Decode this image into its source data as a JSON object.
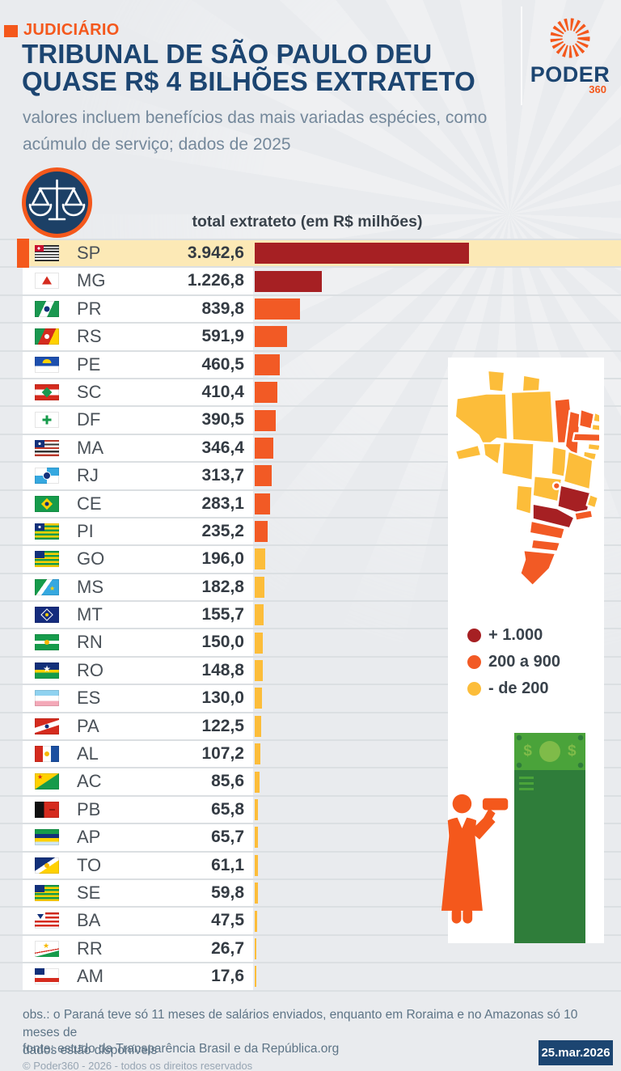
{
  "header": {
    "kicker": "JUDICIÁRIO",
    "title_line1": "TRIBUNAL DE SÃO PAULO DEU",
    "title_line2": "QUASE R$ 4 BILHÕES EXTRATETO",
    "subtitle": "valores incluem benefícios das mais variadas espécies, como acúmulo de serviço; dados de 2025",
    "logo_name": "PODER",
    "logo_sub": "360"
  },
  "table": {
    "column_header": "total extrateto (em R$  milhões)"
  },
  "chart_data": {
    "type": "bar",
    "orientation": "horizontal",
    "title": "total extrateto (em R$ milhões)",
    "unit": "R$ milhões",
    "year": "2025",
    "categories": [
      "SP",
      "MG",
      "PR",
      "RS",
      "PE",
      "SC",
      "DF",
      "MA",
      "RJ",
      "CE",
      "PI",
      "GO",
      "MS",
      "MT",
      "RN",
      "RO",
      "ES",
      "PA",
      "AL",
      "AC",
      "PB",
      "AP",
      "TO",
      "SE",
      "BA",
      "RR",
      "AM"
    ],
    "values": [
      3942.6,
      1226.8,
      839.8,
      591.9,
      460.5,
      410.4,
      390.5,
      346.4,
      313.7,
      283.1,
      235.2,
      196.0,
      182.8,
      155.7,
      150.0,
      148.8,
      130.0,
      122.5,
      107.2,
      85.6,
      65.8,
      65.7,
      61.1,
      59.8,
      47.5,
      26.7,
      17.6
    ],
    "value_labels": [
      "3.942,6",
      "1.226,8",
      "839,8",
      "591,9",
      "460,5",
      "410,4",
      "390,5",
      "346,4",
      "313,7",
      "283,1",
      "235,2",
      "196,0",
      "182,8",
      "155,7",
      "150,0",
      "148,8",
      "130,0",
      "122,5",
      "107,2",
      "85,6",
      "65,8",
      "65,7",
      "61,1",
      "59,8",
      "47,5",
      "26,7",
      "17,6"
    ],
    "max_value": 3942.6,
    "highlight_category": "SP",
    "color_rule": {
      "dark_red_min": 1000,
      "orange_min": 200
    },
    "legend_position": "right-panel"
  },
  "legend": {
    "items": [
      {
        "label": "+ 1.000",
        "color": "#a62023"
      },
      {
        "label": "200 a 900",
        "color": "#f25a25"
      },
      {
        "label": "- de 200",
        "color": "#fcbd3a"
      }
    ]
  },
  "illustration": {
    "bill_symbol_left": "$",
    "bill_symbol_right": "$"
  },
  "footer": {
    "note_line1": "obs.: o Paraná teve só 11 meses de salários enviados, enquanto em Roraima e no Amazonas só 10 meses de",
    "note_line2": "dados estão disponíveis",
    "source": "fonte: estudo da Transparência Brasil e da República.org",
    "copyright": "© Poder360 - 2026 - todos os direitos reservados",
    "date_badge": "25.mar.2026"
  },
  "colors": {
    "accent_orange": "#f4581c",
    "dark_red": "#a62023",
    "orange_bar": "#f25a25",
    "yellow_bar": "#fcbd3a",
    "navy": "#1c4571",
    "cream_highlight": "#fce9b6",
    "page_bg": "#e9ebee"
  }
}
